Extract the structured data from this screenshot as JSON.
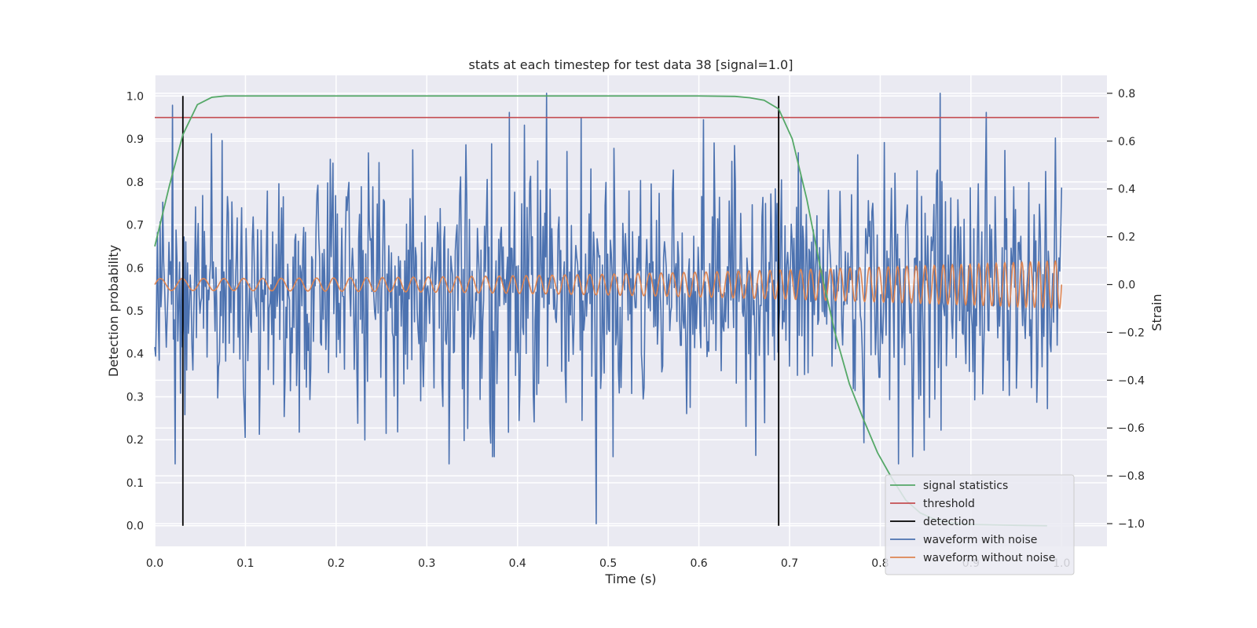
{
  "chart_data": {
    "type": "line",
    "title": "stats at each timestep for test data 38 [signal=1.0]",
    "xlabel": "Time (s)",
    "ylabel": "Detection probability",
    "y2label": "Strain",
    "xlim": [
      0.0,
      1.05
    ],
    "ylim": [
      -0.048,
      1.048
    ],
    "y2lim": [
      -1.095,
      0.875
    ],
    "xticks": [
      0.0,
      0.1,
      0.2,
      0.3,
      0.4,
      0.5,
      0.6,
      0.7,
      0.8,
      0.9,
      1.0
    ],
    "xtick_labels": [
      "0.0",
      "0.1",
      "0.2",
      "0.3",
      "0.4",
      "0.5",
      "0.6",
      "0.7",
      "0.8",
      "0.9",
      "1.0"
    ],
    "yticks": [
      0.0,
      0.1,
      0.2,
      0.3,
      0.4,
      0.5,
      0.6,
      0.7,
      0.8,
      0.9,
      1.0
    ],
    "ytick_labels": [
      "0.0",
      "0.1",
      "0.2",
      "0.3",
      "0.4",
      "0.5",
      "0.6",
      "0.7",
      "0.8",
      "0.9",
      "1.0"
    ],
    "y2ticks": [
      -1.0,
      -0.8,
      -0.6,
      -0.4,
      -0.2,
      0.0,
      0.2,
      0.4,
      0.6,
      0.8
    ],
    "y2tick_labels": [
      "−1.0",
      "−0.8",
      "−0.6",
      "−0.4",
      "−0.2",
      "0.0",
      "0.2",
      "0.4",
      "0.6",
      "0.8"
    ],
    "grid": true,
    "legend_placement": "lower-right",
    "colors": {
      "background": "#eaeaf2",
      "grid": "#ffffff",
      "signal_statistics": "#55a868",
      "threshold": "#c44e52",
      "detection": "#000000",
      "waveform_noise": "#4c72b0",
      "waveform_clean": "#dd8452"
    },
    "series": [
      {
        "name": "signal statistics",
        "axis": "left",
        "x": [
          0.0,
          0.016,
          0.031,
          0.047,
          0.063,
          0.078,
          0.1,
          0.2,
          0.3,
          0.4,
          0.5,
          0.6,
          0.64,
          0.656,
          0.672,
          0.688,
          0.703,
          0.719,
          0.734,
          0.75,
          0.766,
          0.781,
          0.797,
          0.813,
          0.828,
          0.844,
          0.86,
          0.875,
          0.9,
          0.95,
          0.984
        ],
        "y": [
          0.65,
          0.79,
          0.91,
          0.98,
          0.997,
          1.0,
          1.0,
          1.0,
          1.0,
          1.0,
          1.0,
          1.0,
          0.999,
          0.996,
          0.99,
          0.97,
          0.9,
          0.76,
          0.6,
          0.45,
          0.33,
          0.25,
          0.17,
          0.11,
          0.06,
          0.03,
          0.015,
          0.007,
          0.003,
          0.001,
          0.0
        ]
      },
      {
        "name": "threshold",
        "axis": "left",
        "x": [
          0.0,
          1.05
        ],
        "y": [
          0.95,
          0.95
        ]
      },
      {
        "name": "detection",
        "axis": "left",
        "x": [
          0.031,
          0.688
        ],
        "y": [
          1.0,
          1.0
        ]
      },
      {
        "name": "waveform with noise",
        "axis": "right",
        "x_start": 0.0,
        "x_end": 1.0,
        "peaks": [
          {
            "x": 0.02,
            "y": 0.75
          },
          {
            "x": 0.432,
            "y": 0.8
          },
          {
            "x": 0.866,
            "y": 0.8
          },
          {
            "x": 0.487,
            "y": -1.0
          },
          {
            "x": 0.022,
            "y": -0.75
          },
          {
            "x": 0.325,
            "y": -0.75
          },
          {
            "x": 0.82,
            "y": -0.75
          }
        ]
      },
      {
        "name": "waveform without noise",
        "axis": "right",
        "x_start": 0.0,
        "x_end": 1.0,
        "amplitude_start": 0.025,
        "amplitude_end": 0.1,
        "cycles_start": 40,
        "cycles_end": 110
      }
    ],
    "legend": [
      {
        "label": "signal statistics",
        "color": "#55a868"
      },
      {
        "label": "threshold",
        "color": "#c44e52"
      },
      {
        "label": "detection",
        "color": "#000000"
      },
      {
        "label": "waveform with noise",
        "color": "#4c72b0"
      },
      {
        "label": "waveform without noise",
        "color": "#dd8452"
      }
    ]
  }
}
